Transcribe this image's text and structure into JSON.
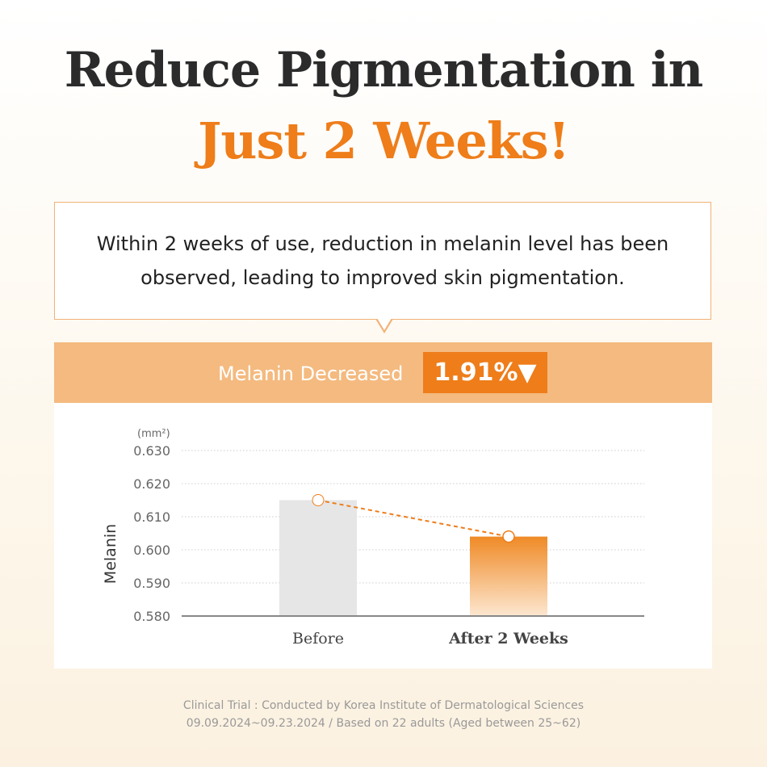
{
  "header": {
    "title_line1": "Reduce Pigmentation in",
    "title_line2": "Just 2 Weeks!"
  },
  "bubble": {
    "line1": "Within 2 weeks of use, reduction in melanin level has been",
    "line2": "observed, leading to improved skin pigmentation."
  },
  "banner": {
    "label": "Melanin Decreased",
    "value": "1.91%▼"
  },
  "colors": {
    "accent": "#ee7d1a",
    "before_bar": "#e6e6e6",
    "band": "#f4ba7f"
  },
  "chart_data": {
    "type": "bar",
    "categories": [
      "Before",
      "After 2 Weeks"
    ],
    "values": [
      0.615,
      0.604
    ],
    "ylabel": "Melanin",
    "unit": "(mm²)",
    "ylim": [
      0.58,
      0.63
    ],
    "yticks": [
      "0.580",
      "0.590",
      "0.600",
      "0.610",
      "0.620",
      "0.630"
    ],
    "grid": true,
    "overlay_line": "dashed connecting bar tops"
  },
  "footer": {
    "line1": "Clinical Trial : Conducted by Korea Institute of Dermatological Sciences",
    "line2": "09.09.2024~09.23.2024 / Based on  22 adults (Aged between 25~62)"
  }
}
